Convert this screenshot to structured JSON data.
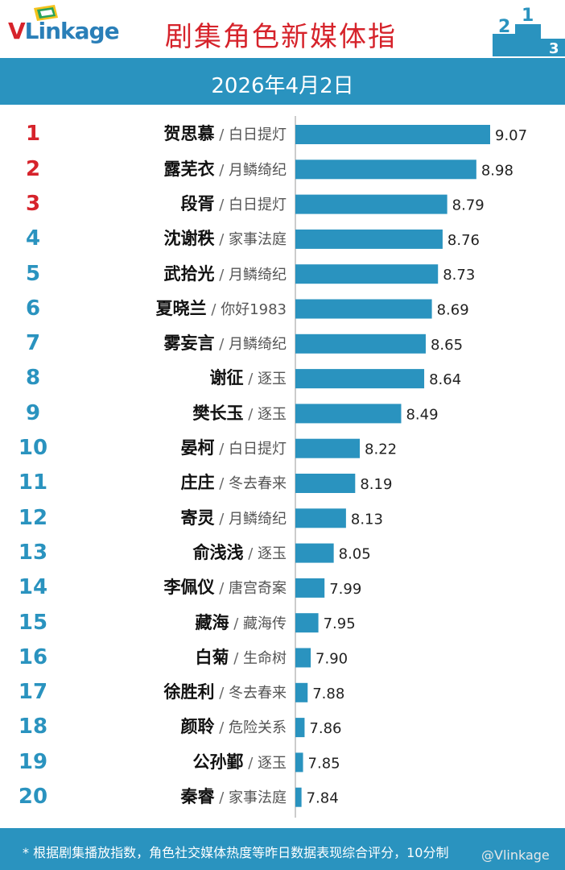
{
  "brand": {
    "logo_text": "VLinkage",
    "logo_v": "V",
    "logo_rest": "Linkage"
  },
  "title": "剧集角色新媒体指",
  "date": "2026年4月2日",
  "colors": {
    "bar": "#2a93bf",
    "rank_top": "#d6232b",
    "rank_other": "#2a93bf",
    "title": "#d6232b"
  },
  "chart_data": {
    "type": "bar",
    "orientation": "horizontal",
    "categories": [
      "贺思慕 / 白日提灯",
      "露芜衣 / 月鳞绮纪",
      "段胥 / 白日提灯",
      "沈谢秩 / 家事法庭",
      "武拾光 / 月鳞绮纪",
      "夏晓兰 / 你好1983",
      "雾妄言 / 月鳞绮纪",
      "谢征 / 逐玉",
      "樊长玉 / 逐玉",
      "晏柯 / 白日提灯",
      "庄庄 / 冬去春来",
      "寄灵 / 月鳞绮纪",
      "俞浅浅 / 逐玉",
      "李佩仪 / 唐宫奇案",
      "藏海 / 藏海传",
      "白菊 / 生命树",
      "徐胜利 / 冬去春来",
      "颜聆 / 危险关系",
      "公孙鄞 / 逐玉",
      "秦睿 / 家事法庭"
    ],
    "ranks": [
      "1",
      "2",
      "3",
      "4",
      "5",
      "6",
      "7",
      "8",
      "9",
      "10",
      "11",
      "12",
      "13",
      "14",
      "15",
      "16",
      "17",
      "18",
      "19",
      "20"
    ],
    "names": [
      "贺思慕",
      "露芜衣",
      "段胥",
      "沈谢秩",
      "武拾光",
      "夏晓兰",
      "雾妄言",
      "谢征",
      "樊长玉",
      "晏柯",
      "庄庄",
      "寄灵",
      "俞浅浅",
      "李佩仪",
      "藏海",
      "白菊",
      "徐胜利",
      "颜聆",
      "公孙鄞",
      "秦睿"
    ],
    "shows": [
      "白日提灯",
      "月鳞绮纪",
      "白日提灯",
      "家事法庭",
      "月鳞绮纪",
      "你好1983",
      "月鳞绮纪",
      "逐玉",
      "逐玉",
      "白日提灯",
      "冬去春来",
      "月鳞绮纪",
      "逐玉",
      "唐宫奇案",
      "藏海传",
      "生命树",
      "冬去春来",
      "危险关系",
      "逐玉",
      "家事法庭"
    ],
    "values": [
      9.07,
      8.98,
      8.79,
      8.76,
      8.73,
      8.69,
      8.65,
      8.64,
      8.49,
      8.22,
      8.19,
      8.13,
      8.05,
      7.99,
      7.95,
      7.9,
      7.88,
      7.86,
      7.85,
      7.84
    ],
    "value_labels": [
      "9.07",
      "8.98",
      "8.79",
      "8.76",
      "8.73",
      "8.69",
      "8.65",
      "8.64",
      "8.49",
      "8.22",
      "8.19",
      "8.13",
      "8.05",
      "7.99",
      "7.95",
      "7.90",
      "7.88",
      "7.86",
      "7.85",
      "7.84"
    ],
    "separator": "/",
    "xlim": [
      7.8,
      9.07
    ],
    "grid": false,
    "legend": false
  },
  "footnote": "* 根据剧集播放指数，角色社交媒体热度等昨日数据表现综合评分，10分制",
  "watermark": "@Vlinkage"
}
